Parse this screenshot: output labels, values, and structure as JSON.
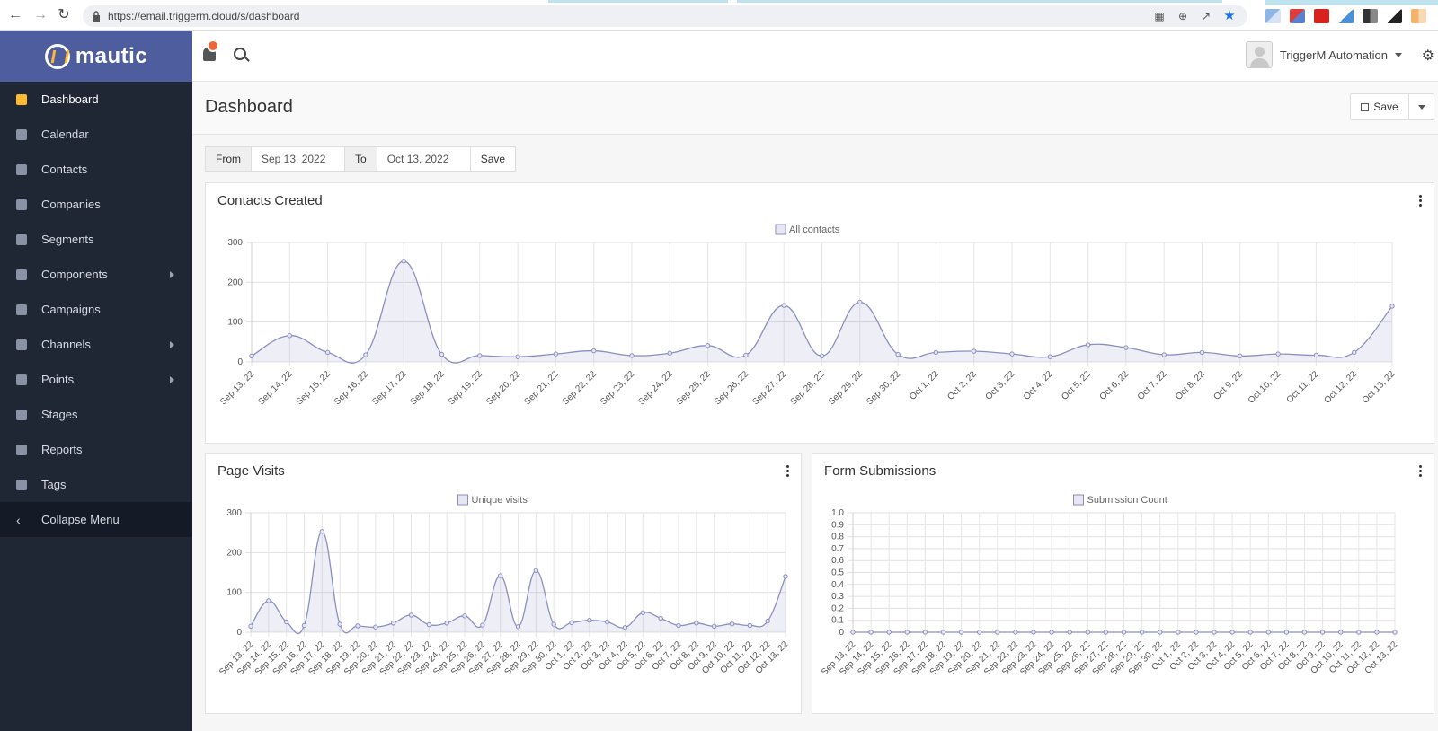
{
  "browser": {
    "url": "https://email.triggerm.cloud/s/dashboard"
  },
  "sidebar": {
    "brand": "mautic",
    "items": [
      {
        "label": "Dashboard",
        "icon": "dashboard-icon",
        "active": true,
        "submenu": false
      },
      {
        "label": "Calendar",
        "icon": "calendar-icon",
        "active": false,
        "submenu": false
      },
      {
        "label": "Contacts",
        "icon": "user-icon",
        "active": false,
        "submenu": false
      },
      {
        "label": "Companies",
        "icon": "building-icon",
        "active": false,
        "submenu": false
      },
      {
        "label": "Segments",
        "icon": "pie-chart-icon",
        "active": false,
        "submenu": false
      },
      {
        "label": "Components",
        "icon": "puzzle-icon",
        "active": false,
        "submenu": true
      },
      {
        "label": "Campaigns",
        "icon": "clock-icon",
        "active": false,
        "submenu": false
      },
      {
        "label": "Channels",
        "icon": "rss-icon",
        "active": false,
        "submenu": true
      },
      {
        "label": "Points",
        "icon": "calculator-icon",
        "active": false,
        "submenu": true
      },
      {
        "label": "Stages",
        "icon": "tachometer-icon",
        "active": false,
        "submenu": false
      },
      {
        "label": "Reports",
        "icon": "line-chart-icon",
        "active": false,
        "submenu": false
      },
      {
        "label": "Tags",
        "icon": "tag-icon",
        "active": false,
        "submenu": false
      }
    ],
    "collapse_label": "Collapse Menu"
  },
  "header": {
    "user_name": "TriggerM Automation"
  },
  "page": {
    "title": "Dashboard",
    "save_label": "Save"
  },
  "datefilter": {
    "from_label": "From",
    "from_value": "Sep 13, 2022",
    "to_label": "To",
    "to_value": "Oct 13, 2022",
    "save_label": "Save"
  },
  "chart_data": [
    {
      "id": "contacts",
      "type": "area",
      "title": "Contacts Created",
      "legend": "All contacts",
      "ylim": [
        0,
        300
      ],
      "yticks": [
        "0",
        "100",
        "200",
        "300"
      ],
      "categories": [
        "Sep 13, 22",
        "Sep 14, 22",
        "Sep 15, 22",
        "Sep 16, 22",
        "Sep 17, 22",
        "Sep 18, 22",
        "Sep 19, 22",
        "Sep 20, 22",
        "Sep 21, 22",
        "Sep 22, 22",
        "Sep 23, 22",
        "Sep 24, 22",
        "Sep 25, 22",
        "Sep 26, 22",
        "Sep 27, 22",
        "Sep 28, 22",
        "Sep 29, 22",
        "Sep 30, 22",
        "Oct 1, 22",
        "Oct 2, 22",
        "Oct 3, 22",
        "Oct 4, 22",
        "Oct 5, 22",
        "Oct 6, 22",
        "Oct 7, 22",
        "Oct 8, 22",
        "Oct 9, 22",
        "Oct 10, 22",
        "Oct 11, 22",
        "Oct 12, 22",
        "Oct 13, 22"
      ],
      "values": [
        15,
        66,
        24,
        18,
        253,
        19,
        16,
        13,
        20,
        28,
        16,
        22,
        41,
        17,
        142,
        15,
        150,
        19,
        24,
        27,
        20,
        13,
        43,
        36,
        18,
        24,
        15,
        20,
        17,
        24,
        140
      ],
      "color": "#8b8fc0"
    },
    {
      "id": "pagevisits",
      "type": "area",
      "title": "Page Visits",
      "legend": "Unique visits",
      "ylim": [
        0,
        300
      ],
      "yticks": [
        "0",
        "100",
        "200",
        "300"
      ],
      "categories": [
        "Sep 13, 22",
        "Sep 14, 22",
        "Sep 15, 22",
        "Sep 16, 22",
        "Sep 17, 22",
        "Sep 18, 22",
        "Sep 19, 22",
        "Sep 20, 22",
        "Sep 21, 22",
        "Sep 22, 22",
        "Sep 23, 22",
        "Sep 24, 22",
        "Sep 25, 22",
        "Sep 26, 22",
        "Sep 27, 22",
        "Sep 28, 22",
        "Sep 29, 22",
        "Sep 30, 22",
        "Oct 1, 22",
        "Oct 2, 22",
        "Oct 3, 22",
        "Oct 4, 22",
        "Oct 5, 22",
        "Oct 6, 22",
        "Oct 7, 22",
        "Oct 8, 22",
        "Oct 9, 22",
        "Oct 10, 22",
        "Oct 11, 22",
        "Oct 12, 22",
        "Oct 13, 22"
      ],
      "values": [
        15,
        79,
        26,
        17,
        253,
        20,
        16,
        13,
        23,
        43,
        19,
        23,
        41,
        18,
        142,
        14,
        155,
        20,
        24,
        30,
        26,
        12,
        49,
        35,
        17,
        23,
        15,
        21,
        17,
        28,
        140
      ],
      "color": "#8b8fc0"
    },
    {
      "id": "forms",
      "type": "line",
      "title": "Form Submissions",
      "legend": "Submission Count",
      "ylim": [
        0,
        1
      ],
      "yticks": [
        "0",
        "0.1",
        "0.2",
        "0.3",
        "0.4",
        "0.5",
        "0.6",
        "0.7",
        "0.8",
        "0.9",
        "1.0"
      ],
      "categories": [
        "Sep 13, 22",
        "Sep 14, 22",
        "Sep 15, 22",
        "Sep 16, 22",
        "Sep 17, 22",
        "Sep 18, 22",
        "Sep 19, 22",
        "Sep 20, 22",
        "Sep 21, 22",
        "Sep 22, 22",
        "Sep 23, 22",
        "Sep 24, 22",
        "Sep 25, 22",
        "Sep 26, 22",
        "Sep 27, 22",
        "Sep 28, 22",
        "Sep 29, 22",
        "Sep 30, 22",
        "Oct 1, 22",
        "Oct 2, 22",
        "Oct 3, 22",
        "Oct 4, 22",
        "Oct 5, 22",
        "Oct 6, 22",
        "Oct 7, 22",
        "Oct 8, 22",
        "Oct 9, 22",
        "Oct 10, 22",
        "Oct 11, 22",
        "Oct 12, 22",
        "Oct 13, 22"
      ],
      "values": [
        0,
        0,
        0,
        0,
        0,
        0,
        0,
        0,
        0,
        0,
        0,
        0,
        0,
        0,
        0,
        0,
        0,
        0,
        0,
        0,
        0,
        0,
        0,
        0,
        0,
        0,
        0,
        0,
        0,
        0,
        0
      ],
      "color": "#8b8fc0"
    }
  ]
}
